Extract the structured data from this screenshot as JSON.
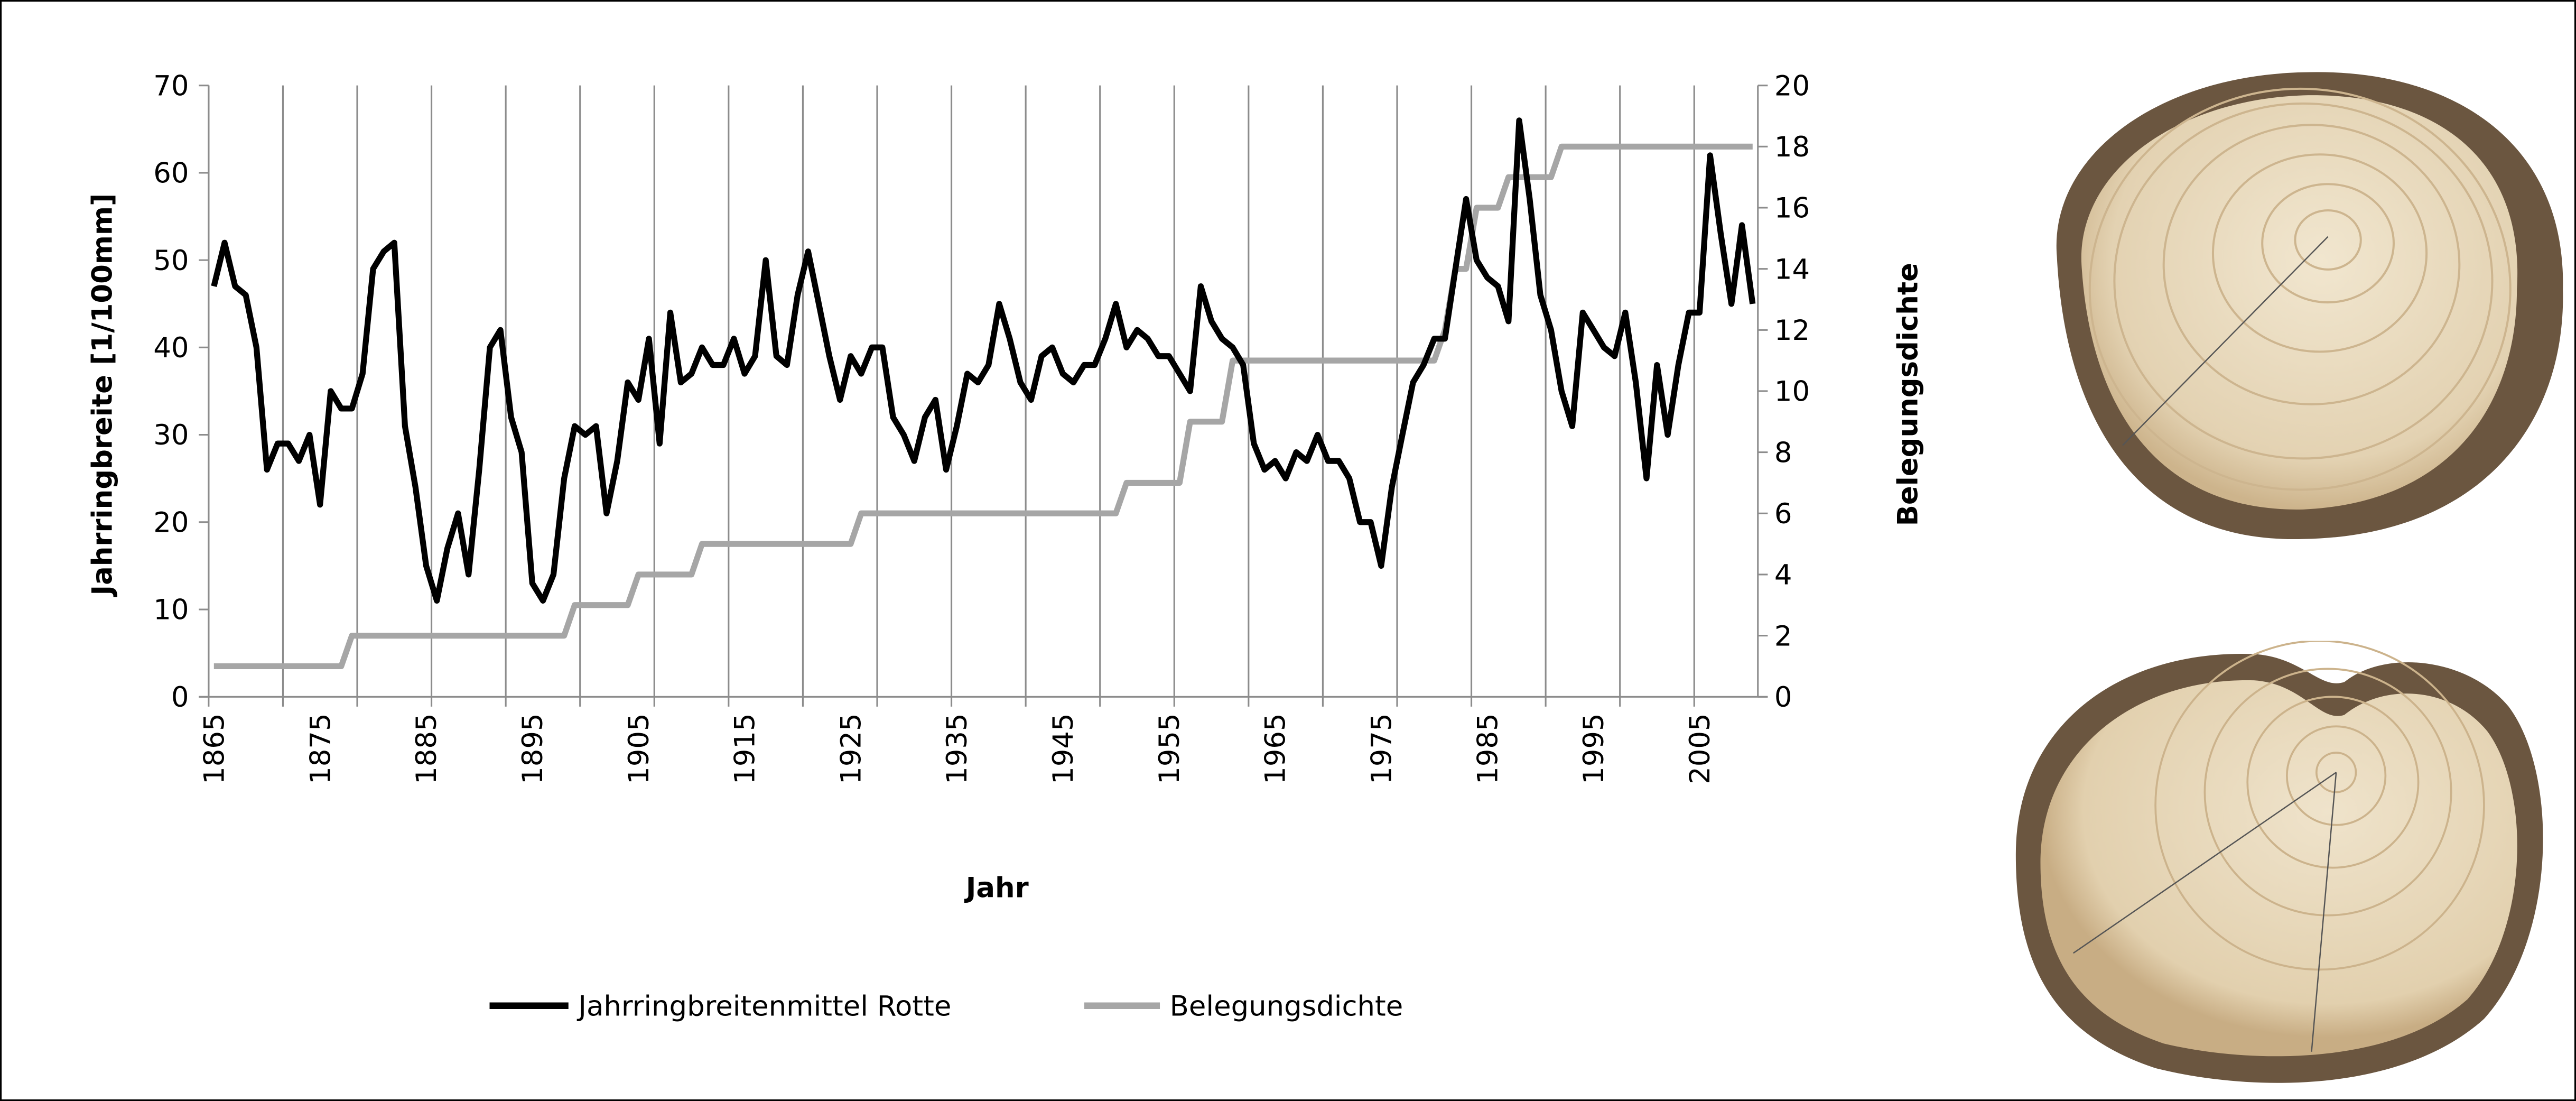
{
  "chart_data": {
    "type": "line",
    "title": "",
    "xlabel": "Jahr",
    "ylabel": "Jahrringbreite [1/100mm]",
    "y2label": "Belegungsdichte",
    "ylim": [
      0,
      70
    ],
    "y2lim": [
      0,
      20
    ],
    "yticks": [
      "0",
      "10",
      "20",
      "30",
      "40",
      "50",
      "60",
      "70"
    ],
    "y2ticks": [
      "0",
      "2",
      "4",
      "6",
      "8",
      "10",
      "12",
      "14",
      "16",
      "18",
      "20"
    ],
    "xticks": [
      "1865",
      "1875",
      "1885",
      "1895",
      "1905",
      "1915",
      "1925",
      "1935",
      "1945",
      "1955",
      "1965",
      "1975",
      "1985",
      "1995",
      "2005"
    ],
    "x_start": 1865,
    "x_end": 2010,
    "grid": "vertical",
    "legend_position": "bottom",
    "series": [
      {
        "name": "Jahrringbreitenmittel Rotte",
        "axis": "left",
        "color": "#000000",
        "values": [
          47,
          52,
          47,
          46,
          40,
          26,
          29,
          29,
          27,
          30,
          22,
          35,
          33,
          33,
          37,
          49,
          51,
          52,
          31,
          24,
          15,
          11,
          17,
          21,
          14,
          26,
          40,
          42,
          32,
          28,
          13,
          11,
          14,
          25,
          31,
          30,
          31,
          21,
          27,
          36,
          34,
          41,
          29,
          44,
          36,
          37,
          40,
          38,
          38,
          41,
          37,
          39,
          50,
          39,
          38,
          46,
          51,
          45,
          39,
          34,
          39,
          37,
          40,
          40,
          32,
          30,
          27,
          32,
          34,
          26,
          31,
          37,
          36,
          38,
          45,
          41,
          36,
          34,
          39,
          40,
          37,
          36,
          38,
          38,
          41,
          45,
          40,
          42,
          41,
          39,
          39,
          37,
          35,
          47,
          43,
          41,
          40,
          38,
          29,
          26,
          27,
          25,
          28,
          27,
          30,
          27,
          27,
          25,
          20,
          20,
          15,
          24,
          30,
          36,
          38,
          41,
          41,
          49,
          57,
          50,
          48,
          47,
          43,
          66,
          57,
          46,
          42,
          35,
          31,
          44,
          42,
          40,
          39,
          44,
          36,
          25,
          38,
          30,
          38,
          44,
          44,
          62,
          53,
          45,
          54,
          45
        ]
      },
      {
        "name": "Belegungsdichte",
        "axis": "right",
        "color": "#a6a6a6",
        "values": [
          1,
          1,
          1,
          1,
          1,
          1,
          1,
          1,
          1,
          1,
          1,
          1,
          1,
          2,
          2,
          2,
          2,
          2,
          2,
          2,
          2,
          2,
          2,
          2,
          2,
          2,
          2,
          2,
          2,
          2,
          2,
          2,
          2,
          2,
          3,
          3,
          3,
          3,
          3,
          3,
          4,
          4,
          4,
          4,
          4,
          4,
          5,
          5,
          5,
          5,
          5,
          5,
          5,
          5,
          5,
          5,
          5,
          5,
          5,
          5,
          5,
          6,
          6,
          6,
          6,
          6,
          6,
          6,
          6,
          6,
          6,
          6,
          6,
          6,
          6,
          6,
          6,
          6,
          6,
          6,
          6,
          6,
          6,
          6,
          6,
          6,
          7,
          7,
          7,
          7,
          7,
          7,
          9,
          9,
          9,
          9,
          11,
          11,
          11,
          11,
          11,
          11,
          11,
          11,
          11,
          11,
          11,
          11,
          11,
          11,
          11,
          11,
          11,
          11,
          11,
          11,
          12,
          14,
          14,
          16,
          16,
          16,
          17,
          17,
          17,
          17,
          17,
          18,
          18,
          18,
          18,
          18,
          18,
          18,
          18,
          18,
          18,
          18,
          18,
          18,
          18,
          18,
          18,
          18,
          18,
          18
        ]
      }
    ]
  },
  "colors": {
    "photo_wood": "#e8d9bd",
    "photo_bark": "#6b5640"
  }
}
